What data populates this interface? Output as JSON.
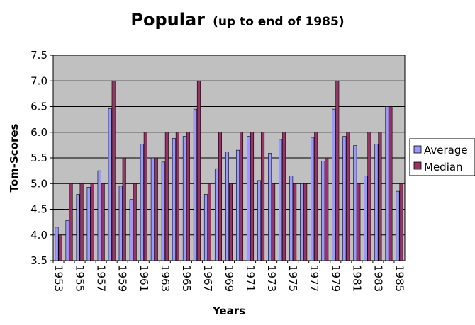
{
  "chart_data": {
    "type": "bar",
    "title": "Popular",
    "subtitle": "(up to end of 1985)",
    "xlabel": "Years",
    "ylabel": "Tom-Scores",
    "ylim": [
      3.5,
      7.5
    ],
    "yticks": [
      "3.5",
      "4.0",
      "4.5",
      "5.0",
      "5.5",
      "6.0",
      "6.5",
      "7.0",
      "7.5"
    ],
    "categories": [
      "1953",
      "1954",
      "1955",
      "1956",
      "1957",
      "1958",
      "1959",
      "1960",
      "1961",
      "1962",
      "1963",
      "1964",
      "1965",
      "1966",
      "1967",
      "1968",
      "1969",
      "1970",
      "1971",
      "1972",
      "1973",
      "1974",
      "1975",
      "1976",
      "1977",
      "1978",
      "1979",
      "1980",
      "1981",
      "1982",
      "1983",
      "1984",
      "1985"
    ],
    "xtick_labels": [
      "1953",
      "1955",
      "1957",
      "1959",
      "1961",
      "1963",
      "1965",
      "1967",
      "1969",
      "1971",
      "1973",
      "1975",
      "1977",
      "1979",
      "1981",
      "1983",
      "1985"
    ],
    "series": [
      {
        "name": "Average",
        "color": "#9999ff",
        "values": [
          4.15,
          4.28,
          4.79,
          4.93,
          5.25,
          6.46,
          4.95,
          4.69,
          5.77,
          5.5,
          5.42,
          5.88,
          5.92,
          6.45,
          4.79,
          5.29,
          5.62,
          5.65,
          5.92,
          5.06,
          5.59,
          5.86,
          5.15,
          5.0,
          5.9,
          5.44,
          6.45,
          5.92,
          5.74,
          5.15,
          5.77,
          6.5,
          4.85
        ]
      },
      {
        "name": "Median",
        "color": "#993366",
        "values": [
          4.0,
          5.0,
          5.0,
          5.0,
          5.0,
          7.0,
          5.5,
          5.0,
          6.0,
          5.5,
          6.0,
          6.0,
          6.0,
          7.0,
          5.0,
          6.0,
          5.0,
          6.0,
          6.0,
          6.0,
          5.0,
          6.0,
          5.0,
          5.0,
          6.0,
          5.5,
          7.0,
          6.0,
          5.0,
          6.0,
          6.0,
          6.5,
          5.0
        ]
      }
    ],
    "grid": true,
    "plot_background": "#c0c0c0",
    "legend": "right"
  }
}
